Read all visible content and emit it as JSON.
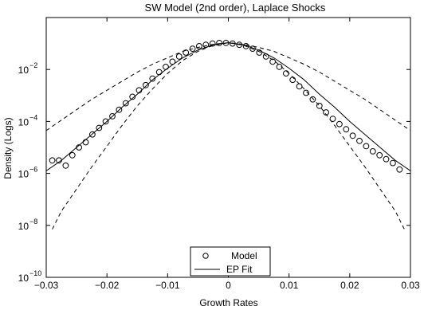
{
  "chart_data": {
    "type": "scatter",
    "title": "SW Model (2nd order), Laplace Shocks",
    "xlabel": "Growth Rates",
    "ylabel": "Density (Logs)",
    "xlim": [
      -0.03,
      0.03
    ],
    "ylim_log10": [
      -10,
      0
    ],
    "y_scale": "log",
    "grid": false,
    "legend_position": "bottom-center",
    "x_ticks": [
      {
        "value": -0.03,
        "label": "−0.03"
      },
      {
        "value": -0.02,
        "label": "−0.02"
      },
      {
        "value": -0.01,
        "label": "−0.01"
      },
      {
        "value": 0,
        "label": "0"
      },
      {
        "value": 0.01,
        "label": "0.01"
      },
      {
        "value": 0.02,
        "label": "0.02"
      },
      {
        "value": 0.03,
        "label": "0.03"
      }
    ],
    "y_ticks": [
      {
        "exp": -10,
        "label": "10",
        "sup": "−10"
      },
      {
        "exp": -8,
        "label": "10",
        "sup": "−8"
      },
      {
        "exp": -6,
        "label": "10",
        "sup": "−6"
      },
      {
        "exp": -4,
        "label": "10",
        "sup": "−4"
      },
      {
        "exp": -2,
        "label": "10",
        "sup": "−2"
      }
    ],
    "series": [
      {
        "name": "Model",
        "style": "circles",
        "x": [
          -0.029,
          -0.0279,
          -0.0268,
          -0.0257,
          -0.0246,
          -0.0235,
          -0.0224,
          -0.0213,
          -0.0202,
          -0.0191,
          -0.018,
          -0.0169,
          -0.0158,
          -0.0147,
          -0.0136,
          -0.0125,
          -0.0114,
          -0.0103,
          -0.0092,
          -0.0081,
          -0.007,
          -0.0059,
          -0.0048,
          -0.0037,
          -0.0026,
          -0.0015,
          -0.0004,
          0.0007,
          0.0018,
          0.0029,
          0.004,
          0.0051,
          0.0062,
          0.0073,
          0.0084,
          0.0095,
          0.0106,
          0.0117,
          0.0128,
          0.0139,
          0.015,
          0.0161,
          0.0172,
          0.0183,
          0.0194,
          0.0205,
          0.0216,
          0.0227,
          0.0238,
          0.0249,
          0.026,
          0.0271,
          0.0282
        ],
        "y_log10": [
          -5.5,
          -5.5,
          -5.7,
          -5.3,
          -5.0,
          -4.8,
          -4.5,
          -4.25,
          -4.0,
          -3.8,
          -3.55,
          -3.3,
          -3.05,
          -2.8,
          -2.6,
          -2.35,
          -2.1,
          -1.9,
          -1.7,
          -1.5,
          -1.35,
          -1.2,
          -1.1,
          -1.05,
          -1.0,
          -0.98,
          -0.98,
          -1.0,
          -1.05,
          -1.1,
          -1.2,
          -1.35,
          -1.5,
          -1.7,
          -1.9,
          -2.15,
          -2.4,
          -2.65,
          -2.9,
          -3.15,
          -3.4,
          -3.65,
          -3.9,
          -4.1,
          -4.3,
          -4.55,
          -4.75,
          -4.95,
          -5.15,
          -5.3,
          -5.45,
          -5.6,
          -5.85
        ]
      },
      {
        "name": "EP Fit",
        "style": "solid",
        "x": [
          -0.03,
          -0.0275,
          -0.025,
          -0.0225,
          -0.02,
          -0.0175,
          -0.015,
          -0.0125,
          -0.01,
          -0.0075,
          -0.005,
          -0.0025,
          0.0,
          0.0025,
          0.005,
          0.0075,
          0.01,
          0.0125,
          0.015,
          0.0175,
          0.02,
          0.0225,
          0.025,
          0.0275,
          0.03
        ],
        "y_log10": [
          -5.9,
          -5.5,
          -5.0,
          -4.5,
          -4.0,
          -3.45,
          -2.95,
          -2.4,
          -1.95,
          -1.55,
          -1.25,
          -1.05,
          -0.97,
          -1.05,
          -1.25,
          -1.55,
          -1.95,
          -2.4,
          -2.95,
          -3.45,
          -4.0,
          -4.5,
          -5.0,
          -5.5,
          -5.9
        ]
      },
      {
        "style": "dashed",
        "x": [
          -0.03,
          -0.0275,
          -0.025,
          -0.0225,
          -0.02,
          -0.0175,
          -0.015,
          -0.0125,
          -0.01,
          -0.0075,
          -0.005,
          -0.0025,
          0.0,
          0.0025,
          0.005,
          0.0075,
          0.01,
          0.0125,
          0.015,
          0.0175,
          0.02,
          0.0225,
          0.025,
          0.0275,
          0.03
        ],
        "y_log10": [
          -4.35,
          -3.95,
          -3.55,
          -3.15,
          -2.8,
          -2.45,
          -2.1,
          -1.8,
          -1.55,
          -1.3,
          -1.15,
          -1.03,
          -0.97,
          -1.03,
          -1.15,
          -1.3,
          -1.55,
          -1.8,
          -2.1,
          -2.45,
          -2.8,
          -3.15,
          -3.55,
          -3.95,
          -4.35
        ]
      },
      {
        "style": "dashed",
        "x": [
          -0.029,
          -0.0275,
          -0.025,
          -0.0225,
          -0.02,
          -0.0175,
          -0.015,
          -0.0125,
          -0.01,
          -0.0075,
          -0.005,
          -0.0025,
          0.0,
          0.0025,
          0.005,
          0.0075,
          0.01,
          0.0125,
          0.015,
          0.0175,
          0.02,
          0.0225,
          0.025,
          0.0275,
          0.029
        ],
        "y_log10": [
          -8.15,
          -7.45,
          -6.6,
          -5.75,
          -4.95,
          -4.15,
          -3.4,
          -2.75,
          -2.15,
          -1.65,
          -1.3,
          -1.07,
          -0.97,
          -1.07,
          -1.3,
          -1.65,
          -2.15,
          -2.75,
          -3.4,
          -4.15,
          -4.95,
          -5.75,
          -6.6,
          -7.45,
          -8.15
        ]
      }
    ]
  }
}
